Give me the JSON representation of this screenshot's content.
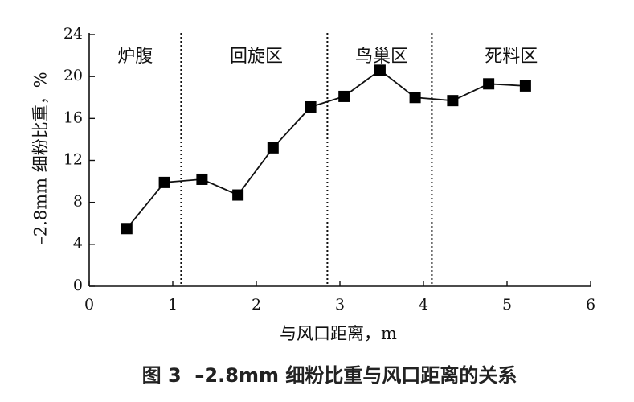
{
  "chart_data": {
    "type": "line",
    "title": "图 3  –2.8mm 细粉比重与风口距离的关系",
    "xlabel": "与风口距离，m",
    "ylabel": "–2.8mm 细粉比重，%",
    "xlim": [
      0,
      6
    ],
    "ylim": [
      0,
      24
    ],
    "xticks": [
      "0",
      "1",
      "2",
      "3",
      "4",
      "5",
      "6"
    ],
    "yticks": [
      "0",
      "4",
      "8",
      "12",
      "16",
      "20",
      "24"
    ],
    "grid": false,
    "marker": "square",
    "series": [
      {
        "x": [
          0.45,
          0.9,
          1.35,
          1.78,
          2.2,
          2.65,
          3.05,
          3.48,
          3.9,
          4.35,
          4.78,
          5.22
        ],
        "y": [
          5.5,
          9.9,
          10.2,
          8.7,
          13.2,
          17.1,
          18.1,
          20.6,
          18.0,
          17.7,
          19.3,
          19.1
        ]
      }
    ],
    "zone_boundaries": [
      1.1,
      2.85,
      4.1
    ],
    "zones": [
      {
        "label": "炉腹",
        "x": 0.55
      },
      {
        "label": "回旋区",
        "x": 2.0
      },
      {
        "label": "鸟巢区",
        "x": 3.5
      },
      {
        "label": "死料区",
        "x": 5.05
      }
    ]
  }
}
